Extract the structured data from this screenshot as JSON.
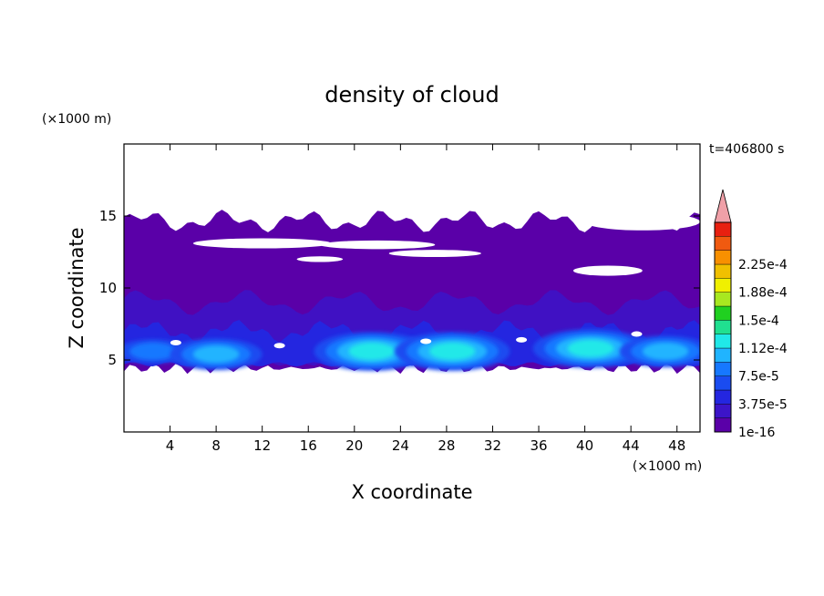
{
  "chart_data": {
    "type": "heatmap",
    "title": "density of cloud",
    "xlabel": "X coordinate",
    "ylabel": "Z coordinate",
    "x_unit": "(×1000 m)",
    "y_unit": "(×1000 m)",
    "time_label": "t=406800 s",
    "xlim": [
      0,
      50
    ],
    "ylim": [
      0,
      20
    ],
    "x_ticks": [
      4,
      8,
      12,
      16,
      20,
      24,
      28,
      32,
      36,
      40,
      44,
      48
    ],
    "y_ticks": [
      5,
      10,
      15
    ],
    "grid": false,
    "colorbar": {
      "placement": "right",
      "labels": [
        "2.25e-4",
        "1.88e-4",
        "1.5e-4",
        "1.12e-4",
        "7.5e-5",
        "3.75e-5",
        "1e-16"
      ],
      "colors": [
        "#5a00a8",
        "#3c14c8",
        "#2426e0",
        "#1a4cf0",
        "#1678ff",
        "#20b4ff",
        "#20e8e8",
        "#20e090",
        "#20d020",
        "#a8e820",
        "#f0f000",
        "#f0c000",
        "#f89000",
        "#f05a10",
        "#e82010",
        "#f0a0a8"
      ]
    },
    "cloud_layer": {
      "z_range": [
        4.2,
        15.2
      ],
      "unit": "km"
    },
    "dense_cores": [
      {
        "x": 2.5,
        "z": 5.6,
        "level": 4
      },
      {
        "x": 8.0,
        "z": 5.4,
        "level": 5
      },
      {
        "x": 21.5,
        "z": 5.6,
        "level": 6
      },
      {
        "x": 28.5,
        "z": 5.6,
        "level": 6
      },
      {
        "x": 40.5,
        "z": 5.8,
        "level": 6
      },
      {
        "x": 47.0,
        "z": 5.6,
        "level": 5
      }
    ]
  }
}
